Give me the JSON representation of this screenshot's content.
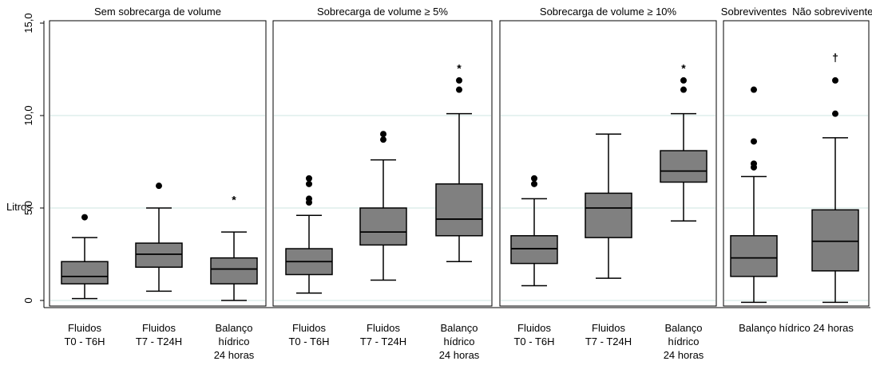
{
  "chart_data": {
    "type": "box",
    "ylabel": "Litros",
    "ylim": [
      -0.5,
      15.5
    ],
    "y_ticks": [
      {
        "value": 0,
        "label": "0"
      },
      {
        "value": 5,
        "label": "5,0"
      },
      {
        "value": 10,
        "label": "10,0"
      },
      {
        "value": 15,
        "label": "15,0"
      }
    ],
    "grid_lines": [
      0,
      5,
      10
    ],
    "colors": {
      "box": "#808080",
      "grid": "#d6eae8",
      "line": "#000000"
    },
    "panels": [
      {
        "title": "Sem sobrecarga de volume",
        "boxes": [
          {
            "label": [
              "Fluidos",
              "T0 - T6H"
            ],
            "whisker_low": 0.1,
            "q1": 0.9,
            "median": 1.3,
            "q3": 2.1,
            "whisker_high": 3.4,
            "outliers": [
              4.5
            ],
            "marker": ""
          },
          {
            "label": [
              "Fluidos",
              "T7 - T24H"
            ],
            "whisker_low": 0.5,
            "q1": 1.8,
            "median": 2.5,
            "q3": 3.1,
            "whisker_high": 5.0,
            "outliers": [
              6.2
            ],
            "marker": ""
          },
          {
            "label": [
              "Balanço",
              "hídrico",
              "24 horas"
            ],
            "whisker_low": 0.0,
            "q1": 0.9,
            "median": 1.7,
            "q3": 2.3,
            "whisker_high": 3.7,
            "outliers": [],
            "marker": "*",
            "marker_value": 5.5
          }
        ]
      },
      {
        "title": "Sobrecarga de volume ≥ 5%",
        "boxes": [
          {
            "label": [
              "Fluidos",
              "T0 - T6H"
            ],
            "whisker_low": 0.4,
            "q1": 1.4,
            "median": 2.1,
            "q3": 2.8,
            "whisker_high": 4.6,
            "outliers": [
              5.3,
              5.5,
              6.3,
              6.6
            ],
            "marker": ""
          },
          {
            "label": [
              "Fluidos",
              "T7 - T24H"
            ],
            "whisker_low": 1.1,
            "q1": 3.0,
            "median": 3.7,
            "q3": 5.0,
            "whisker_high": 7.6,
            "outliers": [
              8.7,
              9.0
            ],
            "marker": ""
          },
          {
            "label": [
              "Balanço",
              "hídrico",
              "24 horas"
            ],
            "whisker_low": 2.1,
            "q1": 3.5,
            "median": 4.4,
            "q3": 6.3,
            "whisker_high": 10.1,
            "outliers": [
              11.4,
              11.9
            ],
            "marker": "*",
            "marker_value": 12.6
          }
        ]
      },
      {
        "title": "Sobrecarga de volume ≥ 10%",
        "boxes": [
          {
            "label": [
              "Fluidos",
              "T0 - T6H"
            ],
            "whisker_low": 0.8,
            "q1": 2.0,
            "median": 2.8,
            "q3": 3.5,
            "whisker_high": 5.5,
            "outliers": [
              6.3,
              6.6
            ],
            "marker": ""
          },
          {
            "label": [
              "Fluidos",
              "T7 - T24H"
            ],
            "whisker_low": 1.2,
            "q1": 3.4,
            "median": 5.0,
            "q3": 5.8,
            "whisker_high": 9.0,
            "outliers": [],
            "marker": ""
          },
          {
            "label": [
              "Balanço",
              "hídrico",
              "24 horas"
            ],
            "whisker_low": 4.3,
            "q1": 6.4,
            "median": 7.0,
            "q3": 8.1,
            "whisker_high": 10.1,
            "outliers": [
              11.4,
              11.9
            ],
            "marker": "*",
            "marker_value": 12.6
          }
        ]
      },
      {
        "title": "",
        "bottom_label": "Balanço hídrico 24 horas",
        "boxes": [
          {
            "label": [],
            "group_title": "Sobreviventes",
            "whisker_low": -0.1,
            "q1": 1.3,
            "median": 2.3,
            "q3": 3.5,
            "whisker_high": 6.7,
            "outliers": [
              7.2,
              7.4,
              8.6,
              11.4
            ],
            "marker": ""
          },
          {
            "label": [],
            "group_title": "Não sobreviventes",
            "whisker_low": -0.1,
            "q1": 1.6,
            "median": 3.2,
            "q3": 4.9,
            "whisker_high": 8.8,
            "outliers": [
              10.1,
              11.9
            ],
            "marker": "†",
            "marker_value": 13.2
          }
        ]
      }
    ]
  }
}
